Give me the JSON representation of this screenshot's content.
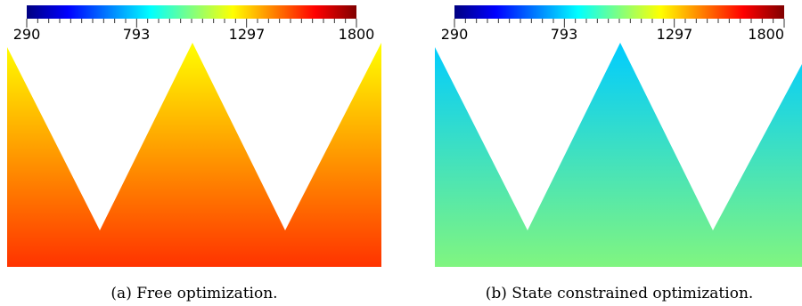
{
  "panels": [
    {
      "id": "a",
      "caption": "(a) Free optimization.",
      "colorbar": {
        "min": 290,
        "max": 1800,
        "tick_labels": [
          "290",
          "793",
          "1297",
          "1800"
        ]
      },
      "field": {
        "top_color": "#ffff00",
        "bottom_color": "#ff3300"
      }
    },
    {
      "id": "b",
      "caption": "(b) State constrained optimization.",
      "colorbar": {
        "min": 290,
        "max": 1800,
        "tick_labels": [
          "290",
          "793",
          "1297",
          "1800"
        ]
      },
      "field": {
        "top_color": "#00ccff",
        "bottom_color": "#80f580"
      }
    }
  ],
  "colormap": [
    "#000080",
    "#0000ff",
    "#0080ff",
    "#00ffff",
    "#80ff80",
    "#ffff00",
    "#ff8000",
    "#ff0000",
    "#800000"
  ]
}
